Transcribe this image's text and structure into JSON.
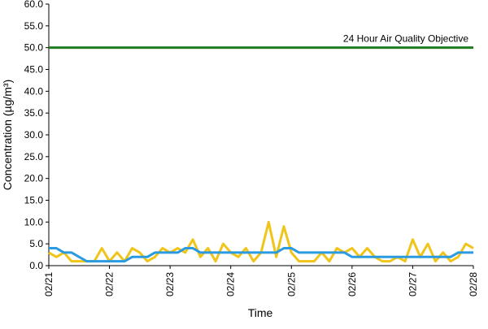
{
  "chart_data": {
    "type": "line",
    "x_label": "Time",
    "y_label": "Concentration (µg/m³)",
    "xlim": [
      0,
      7
    ],
    "ylim": [
      0,
      60
    ],
    "xticks": [
      {
        "value": 0,
        "label": "02/21"
      },
      {
        "value": 1,
        "label": "02/22"
      },
      {
        "value": 2,
        "label": "02/23"
      },
      {
        "value": 3,
        "label": "02/24"
      },
      {
        "value": 4,
        "label": "02/25"
      },
      {
        "value": 5,
        "label": "02/26"
      },
      {
        "value": 6,
        "label": "02/27"
      },
      {
        "value": 7,
        "label": "02/28"
      }
    ],
    "yticks": [
      {
        "value": 0,
        "label": "0.0"
      },
      {
        "value": 5,
        "label": "5.0"
      },
      {
        "value": 10,
        "label": "10.0"
      },
      {
        "value": 15,
        "label": "15.0"
      },
      {
        "value": 20,
        "label": "20.0"
      },
      {
        "value": 25,
        "label": "25.0"
      },
      {
        "value": 30,
        "label": "30.0"
      },
      {
        "value": 35,
        "label": "35.0"
      },
      {
        "value": 40,
        "label": "40.0"
      },
      {
        "value": 45,
        "label": "45.0"
      },
      {
        "value": 50,
        "label": "50.0"
      },
      {
        "value": 55,
        "label": "55.0"
      },
      {
        "value": 60,
        "label": "60.0"
      }
    ],
    "reference_line": {
      "value": 50,
      "label": "24 Hour Air Quality Objective",
      "color": "#1e7d1e"
    },
    "x": [
      0,
      0.125,
      0.25,
      0.375,
      0.5,
      0.625,
      0.75,
      0.875,
      1,
      1.125,
      1.25,
      1.375,
      1.5,
      1.625,
      1.75,
      1.875,
      2,
      2.125,
      2.25,
      2.375,
      2.5,
      2.625,
      2.75,
      2.875,
      3,
      3.125,
      3.25,
      3.375,
      3.5,
      3.625,
      3.75,
      3.875,
      4,
      4.125,
      4.25,
      4.375,
      4.5,
      4.625,
      4.75,
      4.875,
      5,
      5.125,
      5.25,
      5.375,
      5.5,
      5.625,
      5.75,
      5.875,
      6,
      6.125,
      6.25,
      6.375,
      6.5,
      6.625,
      6.75,
      6.875,
      7
    ],
    "series": [
      {
        "color": "#f0c419",
        "values": [
          3,
          2,
          3,
          1,
          1,
          1,
          1,
          4,
          1,
          3,
          1,
          4,
          3,
          1,
          2,
          4,
          3,
          4,
          3,
          6,
          2,
          4,
          1,
          5,
          3,
          2,
          4,
          1,
          3,
          10,
          2,
          9,
          3,
          1,
          1,
          1,
          3,
          1,
          4,
          3,
          4,
          2,
          4,
          2,
          1,
          1,
          2,
          1,
          6,
          2,
          5,
          1,
          3,
          1,
          2,
          5,
          4
        ]
      },
      {
        "color": "#2a9be0",
        "values": [
          4,
          4,
          3,
          3,
          2,
          1,
          1,
          1,
          1,
          1,
          1,
          2,
          2,
          2,
          3,
          3,
          3,
          3,
          4,
          4,
          3,
          3,
          3,
          3,
          3,
          3,
          3,
          3,
          3,
          3,
          3,
          4,
          4,
          3,
          3,
          3,
          3,
          3,
          3,
          3,
          2,
          2,
          2,
          2,
          2,
          2,
          2,
          2,
          2,
          2,
          2,
          2,
          2,
          2,
          3,
          3,
          3
        ]
      }
    ]
  }
}
